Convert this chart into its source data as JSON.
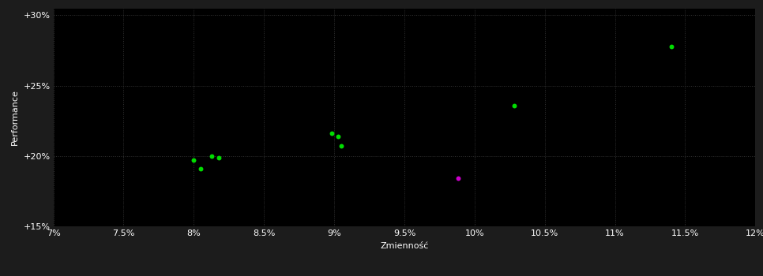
{
  "background_color": "#1c1c1c",
  "plot_bg_color": "#000000",
  "grid_color": "#333333",
  "text_color": "#ffffff",
  "xlabel": "Zmienność",
  "ylabel": "Performance",
  "xlim": [
    0.07,
    0.12
  ],
  "ylim": [
    0.15,
    0.305
  ],
  "xticks": [
    0.07,
    0.075,
    0.08,
    0.085,
    0.09,
    0.095,
    0.1,
    0.105,
    0.11,
    0.115,
    0.12
  ],
  "xtick_labels": [
    "7%",
    "7.5%",
    "8%",
    "8.5%",
    "9%",
    "9.5%",
    "10%",
    "10.5%",
    "11%",
    "11.5%",
    "12%"
  ],
  "yticks": [
    0.15,
    0.2,
    0.25,
    0.3
  ],
  "ytick_labels": [
    "+15%",
    "+20%",
    "+25%",
    "+30%"
  ],
  "green_points": [
    [
      0.08,
      0.197
    ],
    [
      0.0813,
      0.2
    ],
    [
      0.0818,
      0.199
    ],
    [
      0.0805,
      0.191
    ],
    [
      0.0898,
      0.216
    ],
    [
      0.0903,
      0.214
    ],
    [
      0.0905,
      0.207
    ],
    [
      0.1028,
      0.236
    ],
    [
      0.114,
      0.278
    ]
  ],
  "magenta_points": [
    [
      0.0988,
      0.184
    ]
  ],
  "green_color": "#00dd00",
  "magenta_color": "#cc00cc",
  "marker_size": 18,
  "font_size_tick": 8,
  "font_size_label": 8
}
